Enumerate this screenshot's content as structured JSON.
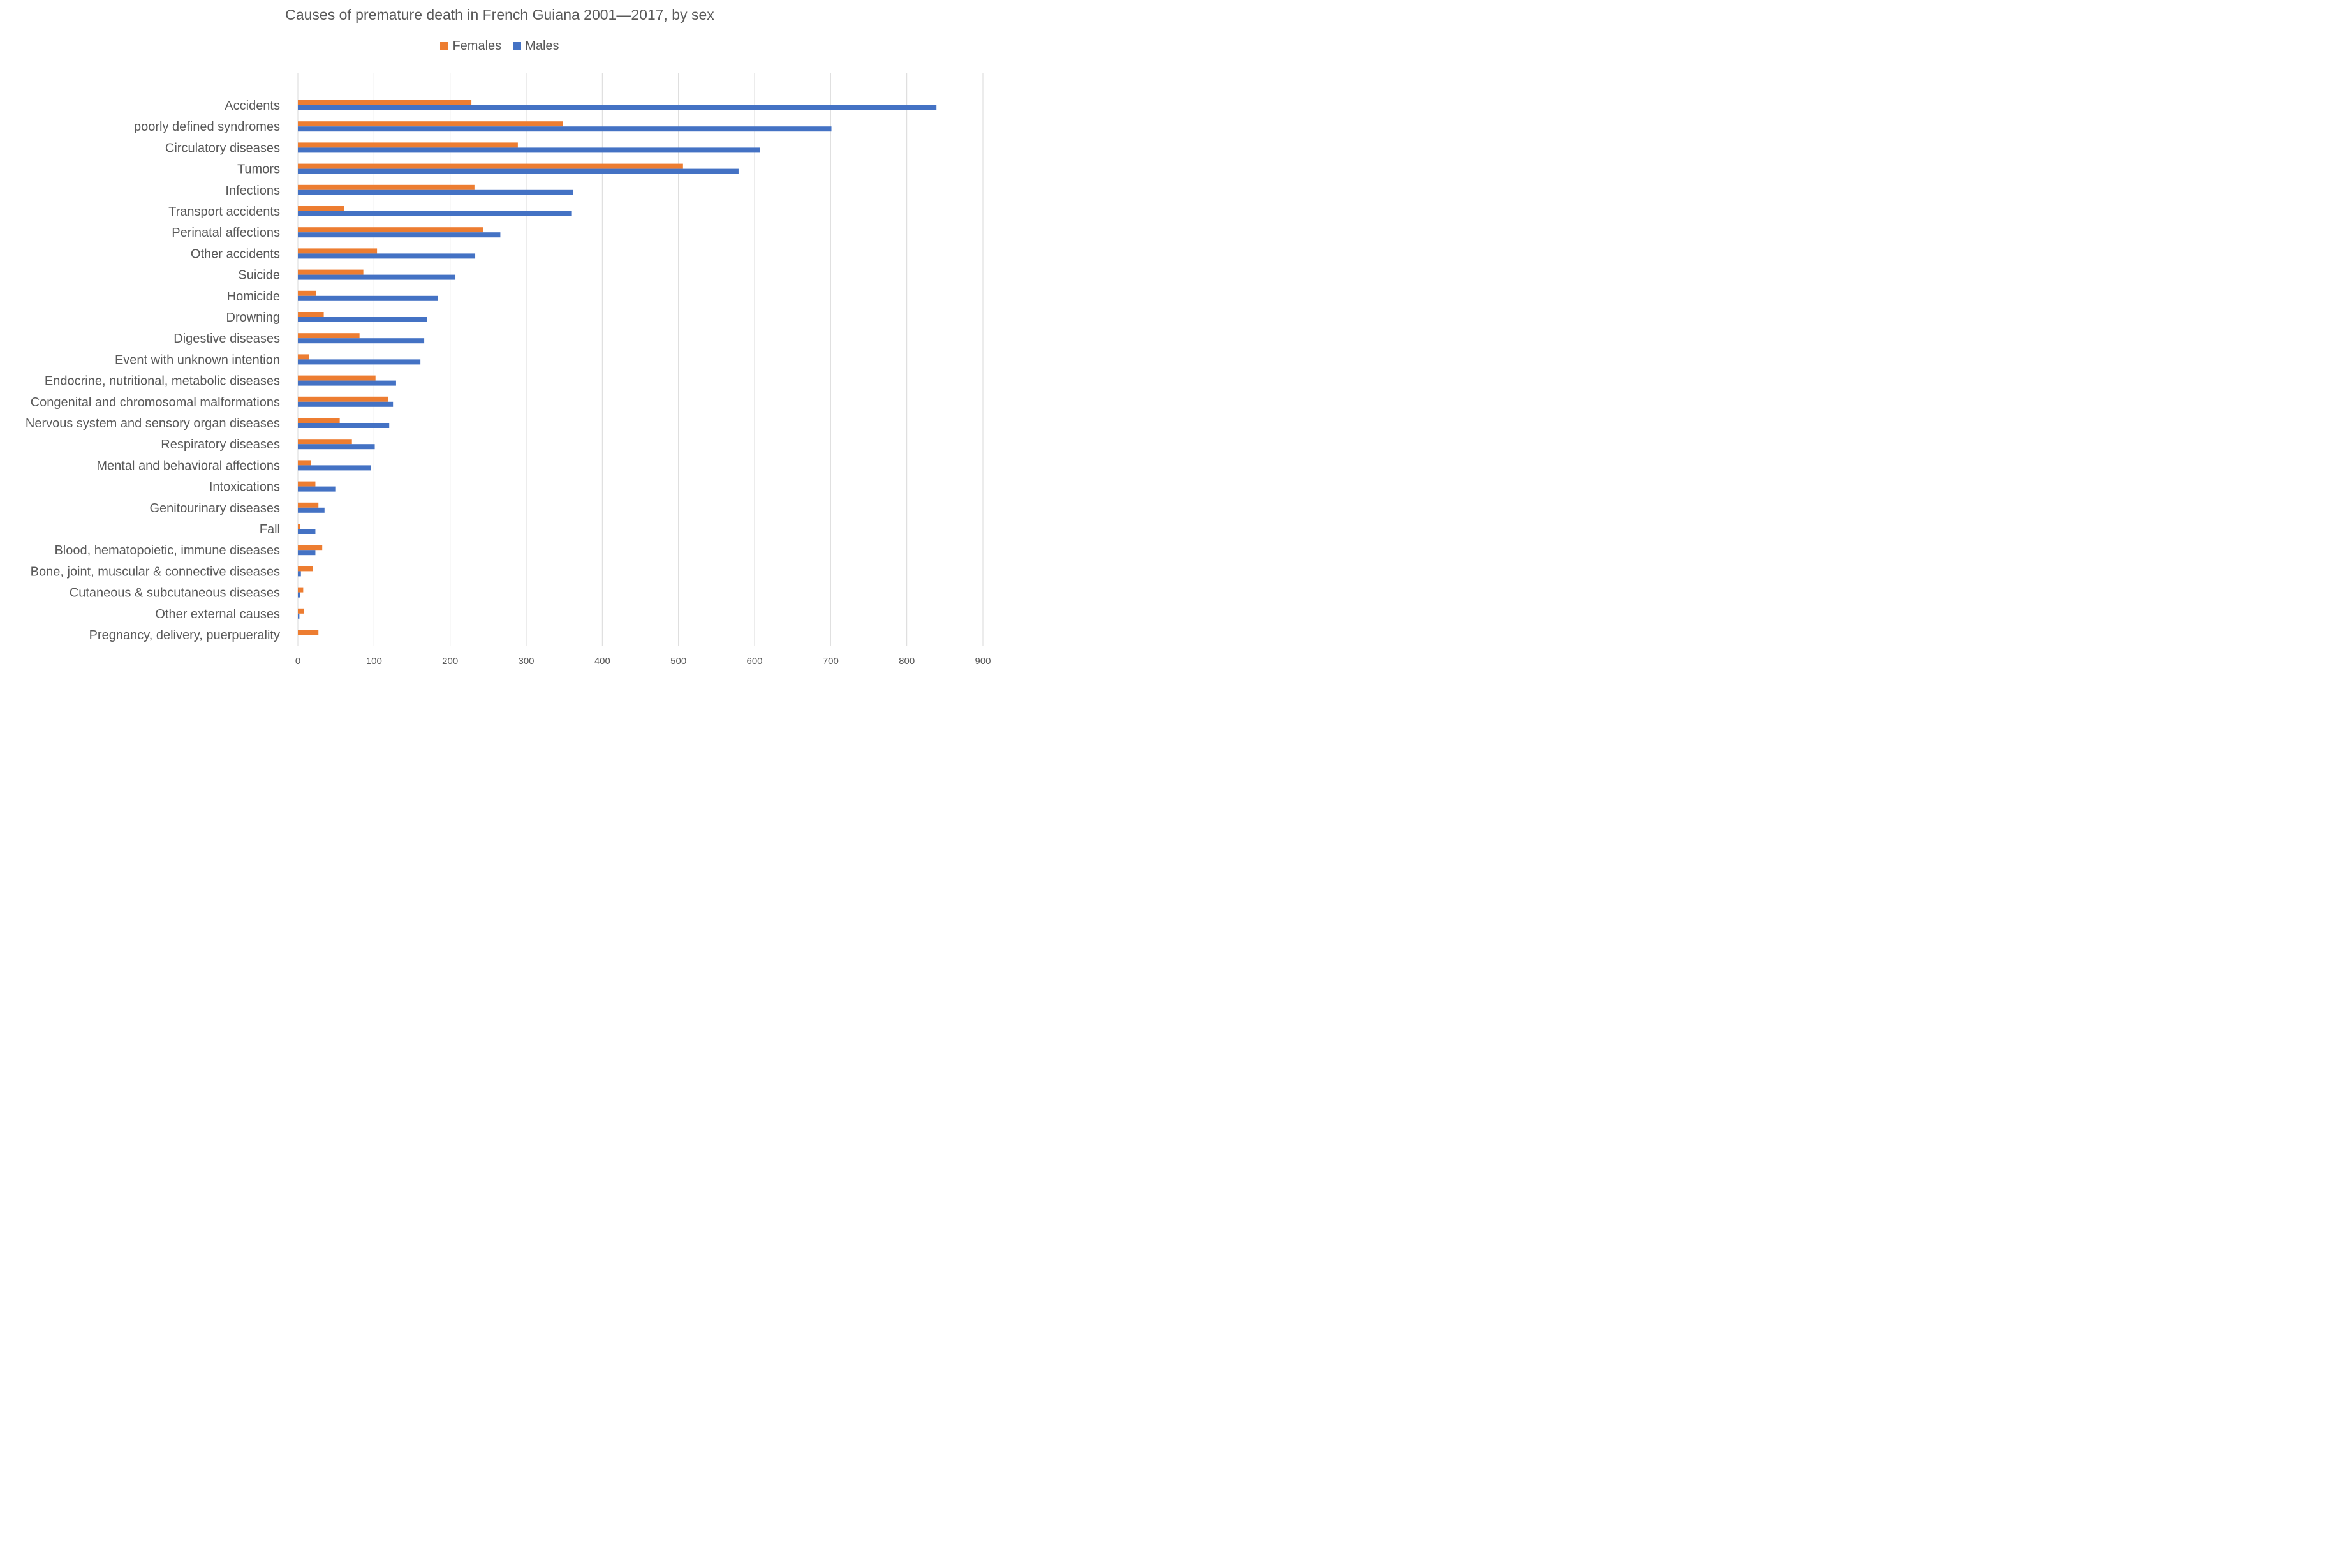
{
  "chart_data": {
    "type": "bar",
    "orientation": "horizontal",
    "title": "Causes of premature death in French Guiana 2001—2017, by sex",
    "xlabel": "",
    "ylabel": "",
    "xlim": [
      0,
      900
    ],
    "ticks": [
      0,
      100,
      200,
      300,
      400,
      500,
      600,
      700,
      800,
      900
    ],
    "grid": "vertical",
    "legend_position": "top",
    "categories": [
      "Accidents",
      "poorly defined syndromes",
      "Circulatory diseases",
      "Tumors",
      "Infections",
      "Transport accidents",
      "Perinatal affections",
      "Other accidents",
      "Suicide",
      "Homicide",
      "Drowning",
      "Digestive diseases",
      "Event with unknown intention",
      "Endocrine, nutritional, metabolic diseases",
      "Congenital and chromosomal malformations",
      "Nervous system and sensory organ diseases",
      "Respiratory diseases",
      "Mental and behavioral affections",
      "Intoxications",
      "Genitourinary diseases",
      "Fall",
      "Blood, hematopoietic, immune diseases",
      "Bone, joint, muscular & connective diseases",
      "Cutaneous & subcutaneous diseases",
      "Other external causes",
      "Pregnancy, delivery, puerpuerality"
    ],
    "series": [
      {
        "name": "Females",
        "color": "#ED7D31",
        "values": [
          228,
          348,
          289,
          506,
          232,
          61,
          243,
          104,
          86,
          24,
          34,
          81,
          15,
          102,
          119,
          55,
          71,
          17,
          23,
          27,
          3,
          32,
          20,
          7,
          8,
          27
        ]
      },
      {
        "name": "Males",
        "color": "#4472C4",
        "values": [
          839,
          701,
          607,
          579,
          362,
          360,
          266,
          233,
          207,
          184,
          170,
          166,
          161,
          129,
          125,
          120,
          101,
          96,
          50,
          35,
          23,
          23,
          4,
          3,
          2,
          0
        ]
      }
    ]
  },
  "colors": {
    "text": "#595959",
    "gridline": "#D9D9D9"
  }
}
